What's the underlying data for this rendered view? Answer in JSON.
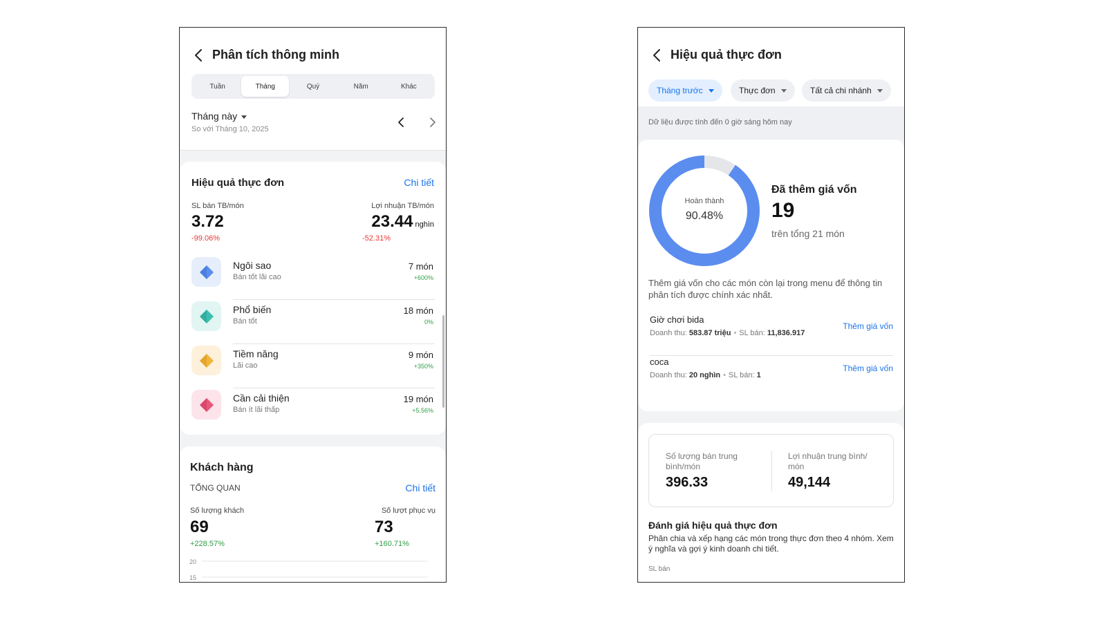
{
  "left": {
    "header": {
      "title": "Phân tích thông minh"
    },
    "period_tabs": [
      {
        "label": "Tuần",
        "active": false
      },
      {
        "label": "Tháng",
        "active": true
      },
      {
        "label": "Quý",
        "active": false
      },
      {
        "label": "Năm",
        "active": false
      },
      {
        "label": "Khác",
        "active": false
      }
    ],
    "period": {
      "label": "Tháng này",
      "compare": "So với Tháng 10, 2025"
    },
    "menu_card": {
      "title": "Hiệu quả thực đơn",
      "detail_link": "Chi tiết",
      "metrics": [
        {
          "label": "SL bán TB/món",
          "value": "3.72",
          "unit": "",
          "change": "-99.06%"
        },
        {
          "label": "Lợi nhuận TB/món",
          "value": "23.44",
          "unit": "nghìn",
          "change": "-52.31%"
        }
      ],
      "categories": [
        {
          "name": "Ngôi sao",
          "desc": "Bán tốt lãi cao",
          "count": "7 món",
          "change": "+600%",
          "icon": "diamond-icon",
          "color": "#5b8def",
          "bg": "#e6eefc"
        },
        {
          "name": "Phổ biến",
          "desc": "Bán tốt",
          "count": "18 món",
          "change": "0%",
          "icon": "diamond-icon",
          "color": "#3cbfb0",
          "bg": "#e1f5f2"
        },
        {
          "name": "Tiềm năng",
          "desc": "Lãi cao",
          "count": "9 món",
          "change": "+350%",
          "icon": "diamond-icon",
          "color": "#f2b53c",
          "bg": "#fdf1dc"
        },
        {
          "name": "Cần cải thiện",
          "desc": "Bán ít lãi thấp",
          "count": "19 món",
          "change": "+5.56%",
          "icon": "diamond-icon",
          "color": "#e9577a",
          "bg": "#fce4ea"
        }
      ]
    },
    "customer_card": {
      "title": "Khách hàng",
      "section": "TỔNG QUAN",
      "detail_link": "Chi tiết",
      "metrics": [
        {
          "label": "Số lượng khách",
          "value": "69",
          "change": "+228.57%"
        },
        {
          "label": "Số lượt phục vụ",
          "value": "73",
          "change": "+160.71%"
        }
      ],
      "chart_data": {
        "type": "line",
        "y_ticks": [
          "20",
          "15"
        ],
        "grid": true
      }
    }
  },
  "right": {
    "header": {
      "title": "Hiệu quả thực đơn"
    },
    "filters": [
      {
        "label": "Tháng trước",
        "active": true
      },
      {
        "label": "Thực đơn",
        "active": false
      },
      {
        "label": "Tất cả chi nhánh",
        "active": false
      }
    ],
    "notice": "Dữ liệu được tính đến 0 giờ sáng hôm nay",
    "cost": {
      "donut_label": "Hoàn thành",
      "donut_value": "90.48%",
      "donut_fraction": 0.9048,
      "title": "Đã thêm giá vốn",
      "count": "19",
      "total": "trên tổng 21 món",
      "hint": "Thêm giá vốn cho các món còn lại trong menu để thông tin phân tích được chính xác nhất.",
      "colors": {
        "done": "#5b8def",
        "rest": "#e4e6ea"
      }
    },
    "items": [
      {
        "name": "Giờ chơi bida",
        "revenue_label": "Doanh thu:",
        "revenue": "583.87 triệu",
        "qty_label": "SL bán:",
        "qty": "11,836.917",
        "action": "Thêm giá vốn"
      },
      {
        "name": "coca",
        "revenue_label": "Doanh thu:",
        "revenue": "20 nghìn",
        "qty_label": "SL bán:",
        "qty": "1",
        "action": "Thêm giá vốn"
      }
    ],
    "stats": [
      {
        "label": "Số lượng bán trung bình/món",
        "value": "396.33"
      },
      {
        "label": "Lợi nhuận trung bình/ món",
        "value": "49,144"
      }
    ],
    "evaluation": {
      "title": "Đánh giá hiệu quả thực đơn",
      "desc": "Phân chia và xếp hạng các món trong thực đơn theo 4 nhóm. Xem ý nghĩa và gợi ý kinh doanh chi tiết.",
      "axis_label": "SL bán"
    }
  }
}
